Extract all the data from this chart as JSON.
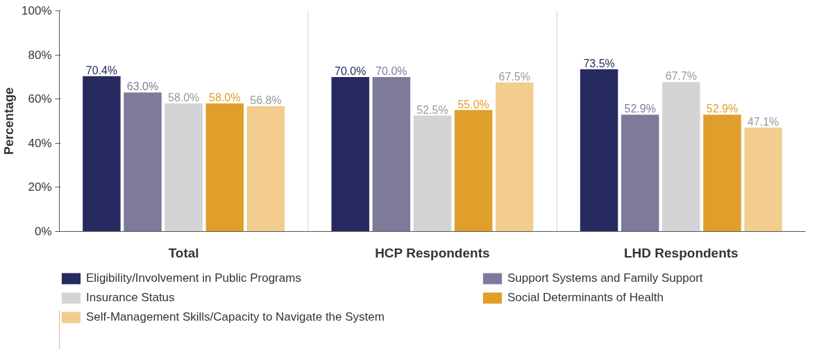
{
  "chart_data": {
    "type": "bar",
    "ylabel": "Percentage",
    "categories": [
      "Total",
      "HCP Respondents",
      "LHD Respondents"
    ],
    "ylim": [
      0,
      100
    ],
    "yticks": [
      {
        "value": 0,
        "label": "0%"
      },
      {
        "value": 20,
        "label": "20%"
      },
      {
        "value": 40,
        "label": "40%"
      },
      {
        "value": 60,
        "label": "60%"
      },
      {
        "value": 80,
        "label": "80%"
      },
      {
        "value": 100,
        "label": "100%"
      }
    ],
    "grid": "x",
    "legend": "bottom",
    "series": [
      {
        "name": "Eligibility/Involvement in Public Programs",
        "color": "#262a5e",
        "values": [
          70.4,
          70.0,
          73.5
        ],
        "value_labels": [
          "70.4%",
          "70.0%",
          "73.5%"
        ]
      },
      {
        "name": "Support Systems and Family Support",
        "color": "#7e7a9c",
        "values": [
          63.0,
          70.0,
          52.9
        ],
        "value_labels": [
          "63.0%",
          "70.0%",
          "52.9%"
        ]
      },
      {
        "name": "Insurance Status",
        "color": "#d4d4d6",
        "values": [
          58.0,
          52.5,
          67.7
        ],
        "value_labels": [
          "58.0%",
          "52.5%",
          "67.7%"
        ]
      },
      {
        "name": "Social Determinants of Health",
        "color": "#e09e2a",
        "values": [
          58.0,
          55.0,
          52.9
        ],
        "value_labels": [
          "58.0%",
          "55.0%",
          "52.9%"
        ]
      },
      {
        "name": "Self-Management Skills/Capacity to Navigate the System",
        "color": "#f2cd8e",
        "values": [
          56.8,
          67.5,
          47.1
        ],
        "value_labels": [
          "56.8%",
          "67.5%",
          "47.1%"
        ]
      }
    ]
  }
}
